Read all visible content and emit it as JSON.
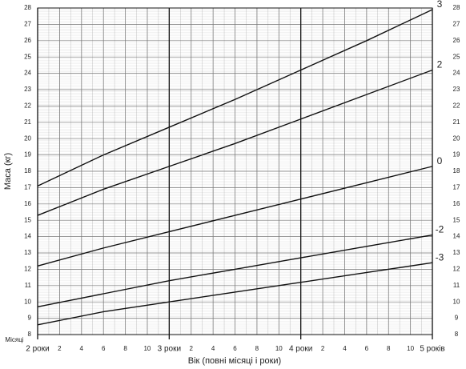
{
  "chart_data": {
    "type": "line",
    "y_title": "Маса (кг)",
    "x_title": "Вік (повні місяці і роки)",
    "x_unit_label": "Місяці",
    "x": [
      24,
      30,
      36,
      42,
      48,
      54,
      60
    ],
    "xlim": [
      24,
      60
    ],
    "xticks": [
      {
        "value": 24,
        "label": "2 роки"
      },
      {
        "value": 26,
        "label": "2"
      },
      {
        "value": 28,
        "label": "4"
      },
      {
        "value": 30,
        "label": "6"
      },
      {
        "value": 32,
        "label": "8"
      },
      {
        "value": 34,
        "label": "10"
      },
      {
        "value": 36,
        "label": "3 роки"
      },
      {
        "value": 38,
        "label": "2"
      },
      {
        "value": 40,
        "label": "4"
      },
      {
        "value": 42,
        "label": "6"
      },
      {
        "value": 44,
        "label": "8"
      },
      {
        "value": 46,
        "label": "10"
      },
      {
        "value": 48,
        "label": "4 роки"
      },
      {
        "value": 50,
        "label": "2"
      },
      {
        "value": 52,
        "label": "4"
      },
      {
        "value": 54,
        "label": "6"
      },
      {
        "value": 56,
        "label": "8"
      },
      {
        "value": 58,
        "label": "10"
      },
      {
        "value": 60,
        "label": "5 років"
      }
    ],
    "ylim": [
      8,
      28
    ],
    "yticks": [
      8,
      9,
      10,
      11,
      12,
      13,
      14,
      15,
      16,
      17,
      18,
      19,
      20,
      21,
      22,
      23,
      24,
      25,
      26,
      27,
      28
    ],
    "grid": true,
    "series": [
      {
        "name": "3",
        "color": "#111111",
        "values": [
          17.1,
          19.0,
          20.7,
          22.4,
          24.2,
          26.0,
          27.9
        ]
      },
      {
        "name": "2",
        "color": "#111111",
        "values": [
          15.3,
          16.9,
          18.3,
          19.7,
          21.2,
          22.7,
          24.2
        ]
      },
      {
        "name": "0",
        "color": "#111111",
        "values": [
          12.2,
          13.3,
          14.3,
          15.3,
          16.3,
          17.3,
          18.3
        ]
      },
      {
        "name": "-2",
        "color": "#111111",
        "values": [
          9.7,
          10.5,
          11.3,
          12.0,
          12.7,
          13.4,
          14.1
        ]
      },
      {
        "name": "-3",
        "color": "#111111",
        "values": [
          8.6,
          9.4,
          10.0,
          10.6,
          11.2,
          11.8,
          12.4
        ]
      }
    ]
  }
}
